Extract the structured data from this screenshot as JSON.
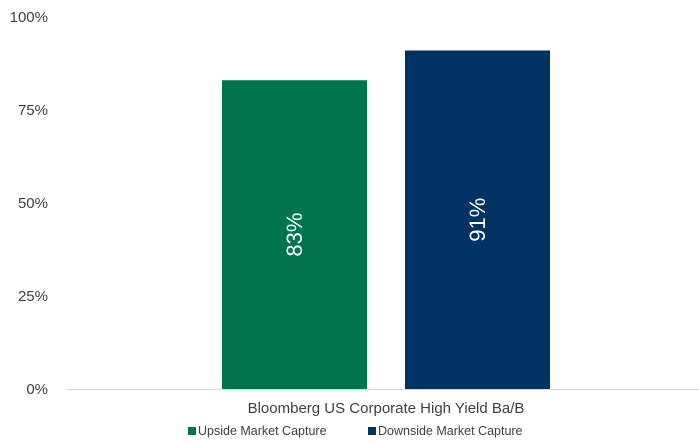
{
  "chart_data": {
    "type": "bar",
    "categories": [
      "Bloomberg US Corporate High Yield Ba/B"
    ],
    "series": [
      {
        "name": "Upside Market Capture",
        "values": [
          83
        ],
        "color": "#00734F",
        "label": "83%"
      },
      {
        "name": "Downside Market Capture",
        "values": [
          91
        ],
        "color": "#003263",
        "label": "91%"
      }
    ],
    "ylim": [
      0,
      100
    ],
    "yticks": [
      0,
      25,
      50,
      75,
      100
    ],
    "ytick_labels": [
      "0%",
      "25%",
      "50%",
      "75%",
      "100%"
    ],
    "grid": false,
    "legend": "bottom-center",
    "title": "",
    "xlabel": "",
    "ylabel": ""
  }
}
